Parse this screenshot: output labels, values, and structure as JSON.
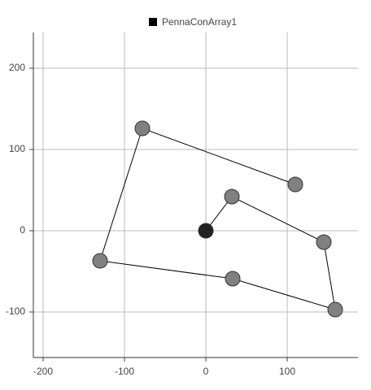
{
  "chart_data": {
    "type": "scatter-line",
    "series": [
      {
        "name": "PennaConArray1",
        "color": "#000000",
        "marker_color": "#808080",
        "start_marker_color": "#222222",
        "x": [
          0,
          32,
          145,
          159,
          33,
          -130,
          -78,
          110
        ],
        "values": [
          0,
          42,
          -14,
          -97,
          -59,
          -37,
          126,
          57
        ]
      }
    ],
    "xlim": [
      -212,
      187
    ],
    "ylim": [
      -156,
      244
    ],
    "xticks": [
      -200,
      -100,
      0,
      100
    ],
    "yticks": [
      -100,
      0,
      100,
      200
    ],
    "grid": true,
    "legend": "top"
  }
}
